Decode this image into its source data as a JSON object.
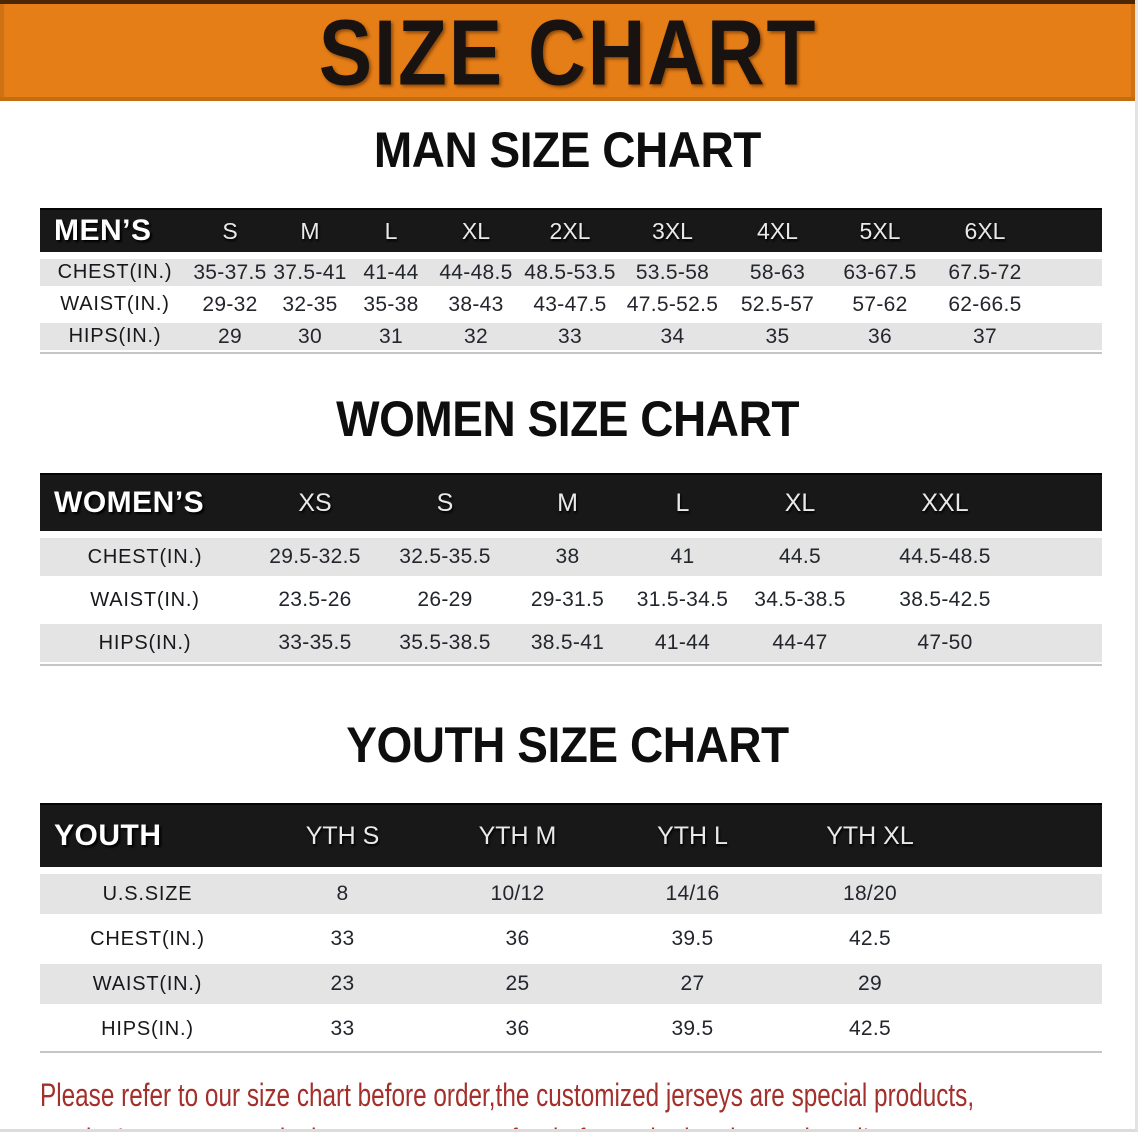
{
  "page": {
    "banner_title": "SIZE CHART",
    "footer_note_line1": "Please refer to our size chart before order,the customized jerseys are special products,",
    "footer_note_line2": "we don't accept cancel, change, teturn or refund after order has been placed!",
    "colors": {
      "banner_bg": "#e67e17",
      "banner_text": "#181210",
      "table_header_bg": "#181818",
      "stripe_row_bg": "#e4e4e5",
      "note_text": "#a3302b"
    }
  },
  "tables": [
    {
      "id": "men",
      "heading": "MAN SIZE CHART",
      "corner_label": "MEN’S",
      "columns": [
        "S",
        "M",
        "L",
        "XL",
        "2XL",
        "3XL",
        "4XL",
        "5XL",
        "6XL"
      ],
      "rows": [
        {
          "label": "CHEST(IN.)",
          "values": [
            "35-37.5",
            "37.5-41",
            "41-44",
            "44-48.5",
            "48.5-53.5",
            "53.5-58",
            "58-63",
            "63-67.5",
            "67.5-72"
          ]
        },
        {
          "label": "WAIST(IN.)",
          "values": [
            "29-32",
            "32-35",
            "35-38",
            "38-43",
            "43-47.5",
            "47.5-52.5",
            "52.5-57",
            "57-62",
            "62-66.5"
          ]
        },
        {
          "label": "HIPS(IN.)",
          "values": [
            "29",
            "30",
            "31",
            "32",
            "33",
            "34",
            "35",
            "36",
            "37"
          ]
        }
      ]
    },
    {
      "id": "women",
      "heading": "WOMEN SIZE CHART",
      "corner_label": "WOMEN’S",
      "columns": [
        "XS",
        "S",
        "M",
        "L",
        "XL",
        "XXL"
      ],
      "rows": [
        {
          "label": "CHEST(IN.)",
          "values": [
            "29.5-32.5",
            "32.5-35.5",
            "38",
            "41",
            "44.5",
            "44.5-48.5"
          ]
        },
        {
          "label": "WAIST(IN.)",
          "values": [
            "23.5-26",
            "26-29",
            "29-31.5",
            "31.5-34.5",
            "34.5-38.5",
            "38.5-42.5"
          ]
        },
        {
          "label": "HIPS(IN.)",
          "values": [
            "33-35.5",
            "35.5-38.5",
            "38.5-41",
            "41-44",
            "44-47",
            "47-50"
          ]
        }
      ]
    },
    {
      "id": "youth",
      "heading": "YOUTH SIZE CHART",
      "corner_label": "YOUTH",
      "columns": [
        "YTH S",
        "YTH M",
        "YTH L",
        "YTH XL"
      ],
      "rows": [
        {
          "label": "U.S.SIZE",
          "values": [
            "8",
            "10/12",
            "14/16",
            "18/20"
          ]
        },
        {
          "label": "CHEST(IN.)",
          "values": [
            "33",
            "36",
            "39.5",
            "42.5"
          ]
        },
        {
          "label": "WAIST(IN.)",
          "values": [
            "23",
            "25",
            "27",
            "29"
          ]
        },
        {
          "label": "HIPS(IN.)",
          "values": [
            "33",
            "36",
            "39.5",
            "42.5"
          ]
        }
      ]
    }
  ]
}
